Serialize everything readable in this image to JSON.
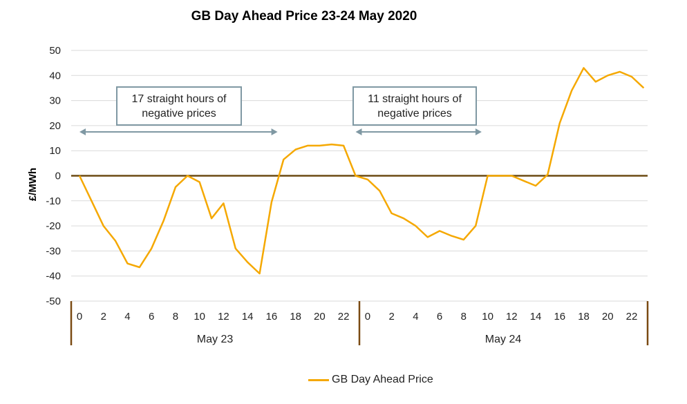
{
  "chart_data": {
    "type": "line",
    "title": "GB Day Ahead Price 23-24 May 2020",
    "ylabel": "£/MWh",
    "xlabel": "",
    "ylim": [
      -50,
      50
    ],
    "y_ticks": [
      "50",
      "40",
      "30",
      "20",
      "10",
      "0",
      "-10",
      "-20",
      "-30",
      "-40",
      "-50"
    ],
    "grid": true,
    "legend_position": "bottom",
    "days": [
      {
        "label": "May 23",
        "tick_labels": [
          "0",
          "2",
          "4",
          "6",
          "8",
          "10",
          "12",
          "14",
          "16",
          "18",
          "20",
          "22"
        ]
      },
      {
        "label": "May 24",
        "tick_labels": [
          "0",
          "2",
          "4",
          "6",
          "8",
          "10",
          "12",
          "14",
          "16",
          "18",
          "20",
          "22"
        ]
      }
    ],
    "series": [
      {
        "name": "GB Day Ahead Price",
        "color": "#f5a800",
        "x_hours": [
          0,
          1,
          2,
          3,
          4,
          5,
          6,
          7,
          8,
          9,
          10,
          11,
          12,
          13,
          14,
          15,
          16,
          17,
          18,
          19,
          20,
          21,
          22,
          23,
          24,
          25,
          26,
          27,
          28,
          29,
          30,
          31,
          32,
          33,
          34,
          35,
          36,
          37,
          38,
          39,
          40,
          41,
          42,
          43,
          44,
          45,
          46,
          47
        ],
        "values": [
          0,
          -10,
          -20,
          -26,
          -35,
          -36.5,
          -29,
          -18,
          -4.5,
          0,
          -2.5,
          -17,
          -11,
          -29,
          -34.5,
          -39,
          -10.5,
          6.5,
          10.5,
          12,
          12,
          12.5,
          12,
          0,
          -1.5,
          -6,
          -15,
          -17,
          -20,
          -24.5,
          -22,
          -24,
          -25.5,
          -20,
          0,
          0,
          0,
          -2,
          -4,
          0.5,
          21,
          34,
          43,
          37.5,
          40,
          41.5,
          39.5,
          35
        ]
      }
    ],
    "annotations": [
      {
        "lines": [
          "17 straight hours of",
          "negative prices"
        ],
        "from_hour": 0,
        "to_hour": 16.5
      },
      {
        "lines": [
          "11 straight hours of",
          "negative prices"
        ],
        "from_hour": 23,
        "to_hour": 33.5
      }
    ],
    "colors": {
      "line": "#f5a800",
      "zero_line": "#6b4a12",
      "grid": "#d9d9d9",
      "day_divider": "#7a4a12",
      "annotation": "#7f98a3"
    }
  }
}
